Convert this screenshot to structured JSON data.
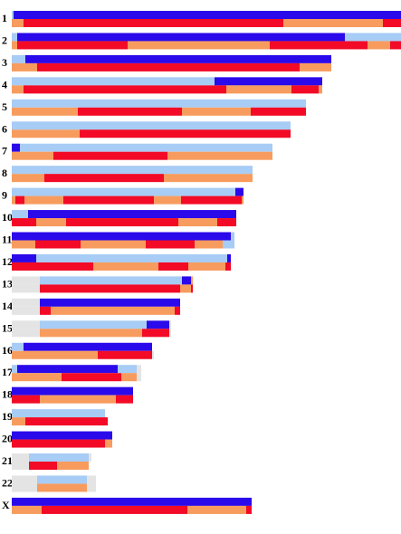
{
  "chart_data": {
    "type": "bar",
    "orientation": "horizontal",
    "description_units": "segment positions in arbitrary units along the row (0 = left of bar area)",
    "colors": {
      "gray": "#e4e4e4",
      "light_blue": "#a7ccf5",
      "blue": "#2a09ea",
      "orange": "#f79c5e",
      "red": "#f20a26"
    },
    "rows": [
      {
        "label": "1",
        "top": [
          [
            "light_blue",
            0,
            2
          ],
          [
            "blue",
            2,
            437
          ]
        ],
        "bottom": [
          [
            "orange",
            0,
            13
          ],
          [
            "red",
            13,
            300
          ],
          [
            "orange",
            300,
            410
          ],
          [
            "red",
            410,
            437
          ],
          [
            "orange",
            437,
            441
          ]
        ]
      },
      {
        "label": "2",
        "top": [
          [
            "light_blue",
            0,
            6
          ],
          [
            "blue",
            6,
            368
          ],
          [
            "light_blue",
            368,
            430
          ]
        ],
        "bottom": [
          [
            "orange",
            0,
            6
          ],
          [
            "red",
            6,
            128
          ],
          [
            "orange",
            128,
            285
          ],
          [
            "red",
            285,
            393
          ],
          [
            "orange",
            393,
            418
          ],
          [
            "red",
            418,
            430
          ]
        ]
      },
      {
        "label": "3",
        "top": [
          [
            "light_blue",
            0,
            15
          ],
          [
            "blue",
            15,
            353
          ]
        ],
        "bottom": [
          [
            "orange",
            0,
            28
          ],
          [
            "red",
            28,
            318
          ],
          [
            "orange",
            318,
            353
          ]
        ]
      },
      {
        "label": "4",
        "top": [
          [
            "light_blue",
            0,
            224
          ],
          [
            "blue",
            224,
            343
          ]
        ],
        "bottom": [
          [
            "orange",
            0,
            13
          ],
          [
            "red",
            13,
            237
          ],
          [
            "orange",
            237,
            309
          ],
          [
            "red",
            309,
            339
          ],
          [
            "orange",
            339,
            343
          ]
        ]
      },
      {
        "label": "5",
        "top": [
          [
            "light_blue",
            0,
            325
          ]
        ],
        "bottom": [
          [
            "orange",
            0,
            73
          ],
          [
            "red",
            73,
            188
          ],
          [
            "orange",
            188,
            264
          ],
          [
            "red",
            264,
            325
          ]
        ]
      },
      {
        "label": "6",
        "top": [
          [
            "light_blue",
            0,
            308
          ]
        ],
        "bottom": [
          [
            "orange",
            0,
            75
          ],
          [
            "red",
            75,
            308
          ]
        ]
      },
      {
        "label": "7",
        "top": [
          [
            "blue",
            0,
            9
          ],
          [
            "light_blue",
            9,
            288
          ]
        ],
        "bottom": [
          [
            "orange",
            0,
            46
          ],
          [
            "red",
            46,
            172
          ],
          [
            "orange",
            172,
            288
          ]
        ]
      },
      {
        "label": "8",
        "top": [
          [
            "light_blue",
            0,
            266
          ]
        ],
        "bottom": [
          [
            "orange",
            0,
            36
          ],
          [
            "red",
            36,
            168
          ],
          [
            "orange",
            168,
            266
          ]
        ]
      },
      {
        "label": "9",
        "top": [
          [
            "light_blue",
            0,
            247
          ],
          [
            "blue",
            247,
            256
          ]
        ],
        "bottom": [
          [
            "orange",
            0,
            4
          ],
          [
            "red",
            4,
            14
          ],
          [
            "orange",
            14,
            57
          ],
          [
            "red",
            57,
            157
          ],
          [
            "orange",
            157,
            187
          ],
          [
            "red",
            187,
            254
          ],
          [
            "orange",
            254,
            256
          ]
        ]
      },
      {
        "label": "10",
        "top": [
          [
            "light_blue",
            0,
            18
          ],
          [
            "blue",
            18,
            248
          ]
        ],
        "bottom": [
          [
            "red",
            0,
            27
          ],
          [
            "orange",
            27,
            60
          ],
          [
            "red",
            60,
            184
          ],
          [
            "orange",
            184,
            227
          ],
          [
            "red",
            227,
            248
          ]
        ]
      },
      {
        "label": "11",
        "top": [
          [
            "blue",
            0,
            242
          ],
          [
            "light_blue",
            242,
            246
          ]
        ],
        "bottom": [
          [
            "orange",
            0,
            26
          ],
          [
            "red",
            26,
            76
          ],
          [
            "orange",
            76,
            148
          ],
          [
            "red",
            148,
            202
          ],
          [
            "orange",
            202,
            233
          ],
          [
            "light_blue",
            233,
            246
          ]
        ]
      },
      {
        "label": "12",
        "top": [
          [
            "blue",
            0,
            27
          ],
          [
            "light_blue",
            27,
            238
          ],
          [
            "blue",
            238,
            242
          ]
        ],
        "bottom": [
          [
            "red",
            0,
            90
          ],
          [
            "orange",
            90,
            162
          ],
          [
            "red",
            162,
            195
          ],
          [
            "orange",
            195,
            236
          ],
          [
            "red",
            236,
            242
          ]
        ]
      },
      {
        "label": "13",
        "top": [
          [
            "gray",
            0,
            31
          ],
          [
            "light_blue",
            31,
            188
          ],
          [
            "blue",
            188,
            198
          ],
          [
            "orange",
            198,
            200
          ]
        ],
        "bottom": [
          [
            "gray",
            0,
            31
          ],
          [
            "red",
            31,
            186
          ],
          [
            "orange",
            186,
            198
          ],
          [
            "red",
            198,
            200
          ]
        ]
      },
      {
        "label": "14",
        "top": [
          [
            "gray",
            0,
            31
          ],
          [
            "blue",
            31,
            186
          ]
        ],
        "bottom": [
          [
            "gray",
            0,
            31
          ],
          [
            "red",
            31,
            43
          ],
          [
            "orange",
            43,
            180
          ],
          [
            "red",
            180,
            186
          ]
        ]
      },
      {
        "label": "15",
        "top": [
          [
            "gray",
            0,
            31
          ],
          [
            "light_blue",
            31,
            149
          ],
          [
            "blue",
            149,
            174
          ],
          [
            "gray",
            174,
            176
          ]
        ],
        "bottom": [
          [
            "gray",
            0,
            31
          ],
          [
            "orange",
            31,
            144
          ],
          [
            "red",
            144,
            174
          ],
          [
            "gray",
            174,
            176
          ]
        ]
      },
      {
        "label": "16",
        "top": [
          [
            "light_blue",
            0,
            13
          ],
          [
            "blue",
            13,
            155
          ]
        ],
        "bottom": [
          [
            "orange",
            0,
            95
          ],
          [
            "red",
            95,
            155
          ],
          [
            "gray",
            155,
            157
          ]
        ]
      },
      {
        "label": "17",
        "top": [
          [
            "light_blue",
            0,
            6
          ],
          [
            "blue",
            6,
            117
          ],
          [
            "light_blue",
            117,
            138
          ],
          [
            "gray",
            138,
            143
          ]
        ],
        "bottom": [
          [
            "orange",
            0,
            55
          ],
          [
            "red",
            55,
            121
          ],
          [
            "orange",
            121,
            138
          ],
          [
            "gray",
            138,
            143
          ]
        ]
      },
      {
        "label": "18",
        "top": [
          [
            "blue",
            0,
            134
          ]
        ],
        "bottom": [
          [
            "red",
            0,
            31
          ],
          [
            "orange",
            31,
            115
          ],
          [
            "red",
            115,
            134
          ]
        ]
      },
      {
        "label": "19",
        "top": [
          [
            "light_blue",
            0,
            103
          ]
        ],
        "bottom": [
          [
            "orange",
            0,
            15
          ],
          [
            "red",
            15,
            106
          ]
        ]
      },
      {
        "label": "20",
        "top": [
          [
            "blue",
            0,
            111
          ]
        ],
        "bottom": [
          [
            "red",
            0,
            103
          ],
          [
            "orange",
            103,
            111
          ]
        ]
      },
      {
        "label": "21",
        "top": [
          [
            "gray",
            0,
            19
          ],
          [
            "light_blue",
            19,
            85
          ],
          [
            "gray",
            85,
            88
          ]
        ],
        "bottom": [
          [
            "gray",
            0,
            19
          ],
          [
            "red",
            19,
            50
          ],
          [
            "orange",
            50,
            85
          ]
        ]
      },
      {
        "label": "22",
        "top": [
          [
            "gray",
            0,
            28
          ],
          [
            "light_blue",
            28,
            83
          ],
          [
            "gray",
            83,
            93
          ]
        ],
        "bottom": [
          [
            "gray",
            0,
            28
          ],
          [
            "orange",
            28,
            83
          ],
          [
            "gray",
            83,
            93
          ]
        ]
      },
      {
        "label": "X",
        "top": [
          [
            "blue",
            0,
            265
          ]
        ],
        "bottom": [
          [
            "orange",
            0,
            33
          ],
          [
            "red",
            33,
            194
          ],
          [
            "orange",
            194,
            259
          ],
          [
            "red",
            259,
            265
          ]
        ]
      }
    ]
  }
}
